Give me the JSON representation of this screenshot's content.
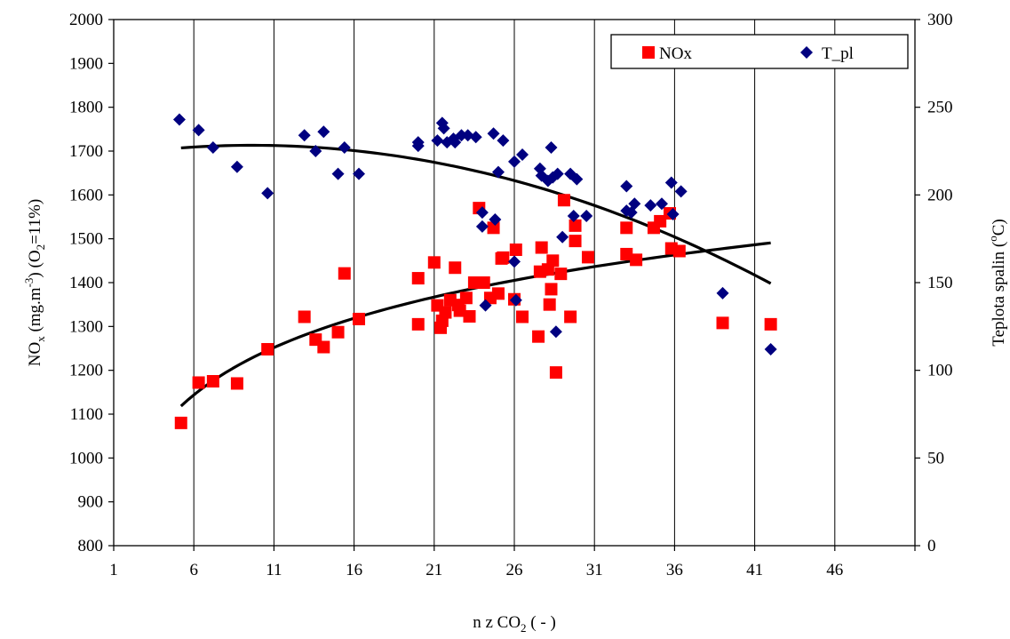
{
  "chart_data": {
    "type": "scatter",
    "title": "",
    "xlabel": {
      "pre": "n z CO",
      "sub": "2",
      "post": " ( - )"
    },
    "ylabel_left": {
      "p1": "NO",
      "s1": "x",
      "p2": " (mg.m",
      "s2": "-3",
      "p3": ") (O",
      "s3": "2",
      "p4": "=11%)"
    },
    "ylabel_right": {
      "p1": "Teplota spalin (",
      "s1": "o",
      "p2": "C)"
    },
    "xlim": [
      1,
      51
    ],
    "ylim_left": [
      800,
      2000
    ],
    "ylim_right": [
      0,
      300
    ],
    "x_ticks": [
      1,
      6,
      11,
      16,
      21,
      26,
      31,
      36,
      41,
      46
    ],
    "y_left_ticks": [
      800,
      900,
      1000,
      1100,
      1200,
      1300,
      1400,
      1500,
      1600,
      1700,
      1800,
      1900,
      2000
    ],
    "y_right_ticks": [
      0,
      50,
      100,
      150,
      200,
      250,
      300
    ],
    "grid": "vertical",
    "legend_position": "top-right",
    "colors": {
      "nox": "#ff0000",
      "tpl": "#000080",
      "trend": "#000000"
    },
    "series": [
      {
        "name": "NOx",
        "axis": "left",
        "marker": "square",
        "points": [
          [
            5.2,
            1080
          ],
          [
            6.3,
            1172
          ],
          [
            7.2,
            1175
          ],
          [
            8.7,
            1170
          ],
          [
            10.6,
            1248
          ],
          [
            12.9,
            1322
          ],
          [
            13.6,
            1270
          ],
          [
            14.1,
            1253
          ],
          [
            15,
            1287
          ],
          [
            15.4,
            1421
          ],
          [
            16.3,
            1317
          ],
          [
            20,
            1305
          ],
          [
            20,
            1410
          ],
          [
            21,
            1446
          ],
          [
            21.2,
            1348
          ],
          [
            21.4,
            1297
          ],
          [
            21.5,
            1313
          ],
          [
            21.7,
            1332
          ],
          [
            22,
            1360
          ],
          [
            22.3,
            1434
          ],
          [
            22.5,
            1349
          ],
          [
            22.6,
            1336
          ],
          [
            23,
            1365
          ],
          [
            23.2,
            1323
          ],
          [
            23.5,
            1400
          ],
          [
            23.8,
            1570
          ],
          [
            24.1,
            1400
          ],
          [
            24.5,
            1365
          ],
          [
            24.7,
            1525
          ],
          [
            25,
            1375
          ],
          [
            25.2,
            1455
          ],
          [
            25.3,
            1457
          ],
          [
            26,
            1362
          ],
          [
            26.1,
            1475
          ],
          [
            26.5,
            1322
          ],
          [
            27.5,
            1277
          ],
          [
            27.6,
            1425
          ],
          [
            27.7,
            1480
          ],
          [
            28.1,
            1430
          ],
          [
            28.2,
            1350
          ],
          [
            28.3,
            1385
          ],
          [
            28.4,
            1450
          ],
          [
            28.6,
            1195
          ],
          [
            28.9,
            1420
          ],
          [
            29.1,
            1588
          ],
          [
            29.5,
            1322
          ],
          [
            29.8,
            1530
          ],
          [
            29.8,
            1495
          ],
          [
            30.6,
            1458
          ],
          [
            33,
            1525
          ],
          [
            33,
            1465
          ],
          [
            33.6,
            1452
          ],
          [
            34.7,
            1525
          ],
          [
            35.1,
            1540
          ],
          [
            35.7,
            1558
          ],
          [
            35.8,
            1478
          ],
          [
            36.3,
            1472
          ],
          [
            39,
            1308
          ],
          [
            42,
            1305
          ]
        ]
      },
      {
        "name": "T_pl",
        "axis": "right",
        "marker": "diamond",
        "points": [
          [
            5.1,
            243
          ],
          [
            6.3,
            237
          ],
          [
            7.2,
            227
          ],
          [
            8.7,
            216
          ],
          [
            10.6,
            201
          ],
          [
            12.9,
            234
          ],
          [
            13.6,
            225
          ],
          [
            14.1,
            236
          ],
          [
            15,
            212
          ],
          [
            15.4,
            227
          ],
          [
            16.3,
            212
          ],
          [
            20,
            230
          ],
          [
            20,
            228
          ],
          [
            21.2,
            231
          ],
          [
            21.5,
            241
          ],
          [
            21.6,
            238
          ],
          [
            21.8,
            230
          ],
          [
            22.2,
            232
          ],
          [
            22.3,
            230
          ],
          [
            22.7,
            234
          ],
          [
            23.1,
            234
          ],
          [
            23.6,
            233
          ],
          [
            24,
            190
          ],
          [
            24,
            182
          ],
          [
            24.2,
            137
          ],
          [
            24.7,
            235
          ],
          [
            24.8,
            186
          ],
          [
            25,
            213
          ],
          [
            25.3,
            231
          ],
          [
            26,
            219
          ],
          [
            26,
            162
          ],
          [
            26.1,
            140
          ],
          [
            26.5,
            223
          ],
          [
            27.6,
            215
          ],
          [
            27.7,
            211
          ],
          [
            28.1,
            208
          ],
          [
            28.3,
            227
          ],
          [
            28.4,
            210
          ],
          [
            28.6,
            122
          ],
          [
            28.7,
            212
          ],
          [
            29,
            176
          ],
          [
            29.5,
            212
          ],
          [
            29.7,
            188
          ],
          [
            29.9,
            209
          ],
          [
            30.5,
            188
          ],
          [
            33,
            205
          ],
          [
            33,
            191
          ],
          [
            33.3,
            190
          ],
          [
            33.5,
            195
          ],
          [
            34.5,
            194
          ],
          [
            35.2,
            195
          ],
          [
            35.8,
            207
          ],
          [
            35.9,
            189
          ],
          [
            36.4,
            202
          ],
          [
            39,
            144
          ],
          [
            42,
            112
          ]
        ]
      }
    ],
    "trendlines": [
      {
        "name": "NOx trend",
        "axis": "left",
        "type": "log",
        "x_range": [
          5.2,
          42
        ]
      },
      {
        "name": "T_pl trend",
        "axis": "right",
        "type": "poly2",
        "x_range": [
          5.2,
          42
        ]
      }
    ]
  }
}
